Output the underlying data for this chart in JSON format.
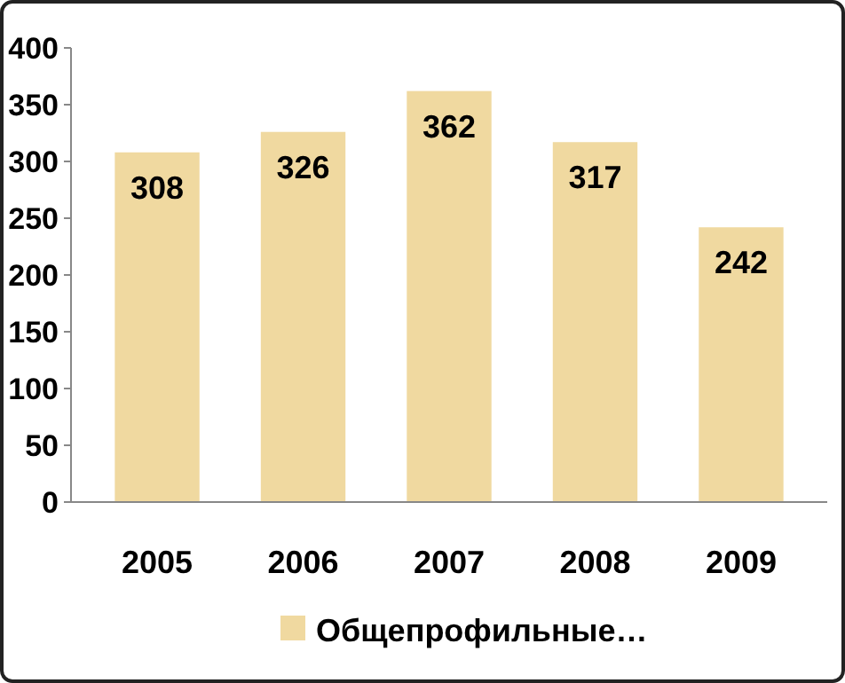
{
  "chart_data": {
    "type": "bar",
    "categories": [
      "2005",
      "2006",
      "2007",
      "2008",
      "2009"
    ],
    "series": [
      {
        "name": "Общепрофильные…",
        "color": "#f0d9a0",
        "values": [
          308,
          326,
          362,
          317,
          242
        ]
      }
    ],
    "ylim": [
      0,
      400
    ],
    "yticks": [
      0,
      50,
      100,
      150,
      200,
      250,
      300,
      350,
      400
    ],
    "data_labels": true,
    "legend": "bottom",
    "grid": false
  }
}
